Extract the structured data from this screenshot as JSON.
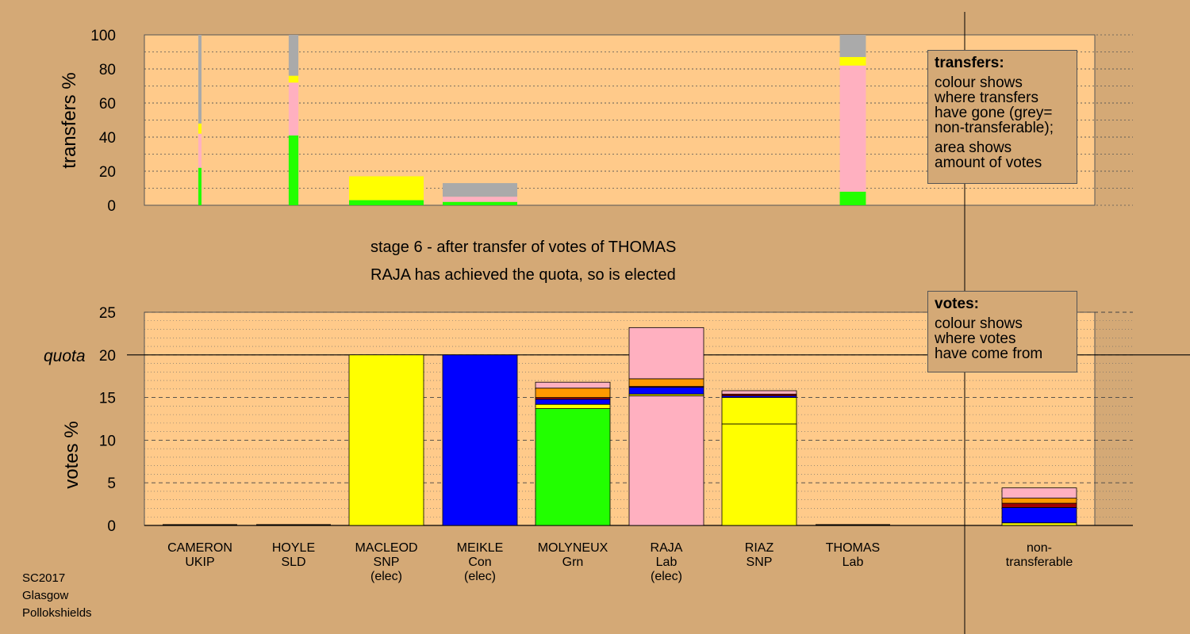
{
  "chart_data": {
    "type": "bar",
    "colors": {
      "background": "#d4a976",
      "plot_bg": "#ffca8a",
      "green": "#22ff00",
      "yellow": "#ffff00",
      "blue": "#0000ff",
      "pink": "#ffb0c0",
      "orange": "#ff9900",
      "grey": "#aaaaaa",
      "darkred": "#a00000"
    },
    "transfers": {
      "ylabel": "transfers %",
      "ylim": [
        0,
        100
      ],
      "yticks": [
        "0",
        "20",
        "40",
        "60",
        "80",
        "100"
      ],
      "bars": [
        {
          "candidate": "CAMERON",
          "width_share": 0.03,
          "segments": [
            {
              "color": "green",
              "value": 22
            },
            {
              "color": "pink",
              "value": 20
            },
            {
              "color": "yellow",
              "value": 6
            },
            {
              "color": "grey",
              "value": 52
            }
          ]
        },
        {
          "candidate": "HOYLE",
          "width_share": 0.13,
          "segments": [
            {
              "color": "green",
              "value": 41
            },
            {
              "color": "pink",
              "value": 31
            },
            {
              "color": "yellow",
              "value": 4
            },
            {
              "color": "grey",
              "value": 24
            }
          ]
        },
        {
          "candidate": "MACLEOD",
          "width_share": 1.0,
          "segments": [
            {
              "color": "green",
              "value": 3
            },
            {
              "color": "yellow",
              "value": 14
            }
          ]
        },
        {
          "candidate": "MEIKLE",
          "width_share": 1.0,
          "segments": [
            {
              "color": "green",
              "value": 2
            },
            {
              "color": "pink",
              "value": 3
            },
            {
              "color": "grey",
              "value": 8
            }
          ]
        },
        {
          "candidate": "THOMAS",
          "width_share": 0.35,
          "segments": [
            {
              "color": "green",
              "value": 8
            },
            {
              "color": "pink",
              "value": 74
            },
            {
              "color": "yellow",
              "value": 5
            },
            {
              "color": "grey",
              "value": 13
            }
          ]
        }
      ]
    },
    "votes": {
      "ylabel": "votes %",
      "ylim": [
        0,
        25
      ],
      "yticks": [
        "0",
        "5",
        "10",
        "15",
        "20",
        "25"
      ],
      "quota": 20,
      "quota_label": "quota",
      "bars": [
        {
          "candidate": "CAMERON",
          "segments": []
        },
        {
          "candidate": "HOYLE",
          "segments": []
        },
        {
          "candidate": "MACLEOD",
          "segments": [
            {
              "color": "yellow",
              "value": 20
            }
          ]
        },
        {
          "candidate": "MEIKLE",
          "segments": [
            {
              "color": "blue",
              "value": 20
            }
          ]
        },
        {
          "candidate": "MOLYNEUX",
          "segments": [
            {
              "color": "green",
              "value": 13.7
            },
            {
              "color": "yellow",
              "value": 0.5
            },
            {
              "color": "blue",
              "value": 0.6
            },
            {
              "color": "darkred",
              "value": 0.2
            },
            {
              "color": "orange",
              "value": 1.1
            },
            {
              "color": "pink",
              "value": 0.7
            }
          ]
        },
        {
          "candidate": "RAJA",
          "segments": [
            {
              "color": "pink",
              "value": 15.2
            },
            {
              "color": "yellow",
              "value": 0.2
            },
            {
              "color": "blue",
              "value": 0.8
            },
            {
              "color": "darkred",
              "value": 0.1
            },
            {
              "color": "orange",
              "value": 0.9
            },
            {
              "color": "pink",
              "value": 6.0
            }
          ]
        },
        {
          "candidate": "RIAZ",
          "segments": [
            {
              "color": "yellow",
              "value": 11.9
            },
            {
              "color": "yellow",
              "value": 3.1
            },
            {
              "color": "blue",
              "value": 0.2
            },
            {
              "color": "darkred",
              "value": 0.2
            },
            {
              "color": "pink",
              "value": 0.4
            }
          ]
        },
        {
          "candidate": "THOMAS",
          "segments": []
        },
        {
          "candidate": "non-transferable",
          "segments": [
            {
              "color": "yellow",
              "value": 0.3
            },
            {
              "color": "blue",
              "value": 1.8
            },
            {
              "color": "darkred",
              "value": 0.5
            },
            {
              "color": "orange",
              "value": 0.6
            },
            {
              "color": "pink",
              "value": 1.2
            }
          ]
        }
      ]
    }
  },
  "legend_transfers": {
    "title": "transfers:",
    "p1": [
      "colour shows",
      "where transfers",
      "have gone (grey=",
      "non-transferable);"
    ],
    "p2": [
      "area shows",
      "amount of votes"
    ]
  },
  "legend_votes": {
    "title": "votes:",
    "p1": [
      "colour shows",
      "where votes",
      "have come from"
    ]
  },
  "stage_title": "stage 6 - after transfer of votes of THOMAS",
  "stage_subtitle": "RAJA has achieved the quota, so is elected",
  "candidates": [
    {
      "lines": [
        "CAMERON",
        "UKIP"
      ]
    },
    {
      "lines": [
        "HOYLE",
        "SLD"
      ]
    },
    {
      "lines": [
        "MACLEOD",
        "SNP",
        "(elec)"
      ]
    },
    {
      "lines": [
        "MEIKLE",
        "Con",
        "(elec)"
      ]
    },
    {
      "lines": [
        "MOLYNEUX",
        "Grn"
      ]
    },
    {
      "lines": [
        "RAJA",
        "Lab",
        "(elec)"
      ]
    },
    {
      "lines": [
        "RIAZ",
        "SNP"
      ]
    },
    {
      "lines": [
        "THOMAS",
        "Lab"
      ]
    },
    {
      "lines": [
        "non-",
        "transferable"
      ]
    }
  ],
  "footer": [
    "SC2017",
    "Glasgow",
    "Pollokshields"
  ]
}
